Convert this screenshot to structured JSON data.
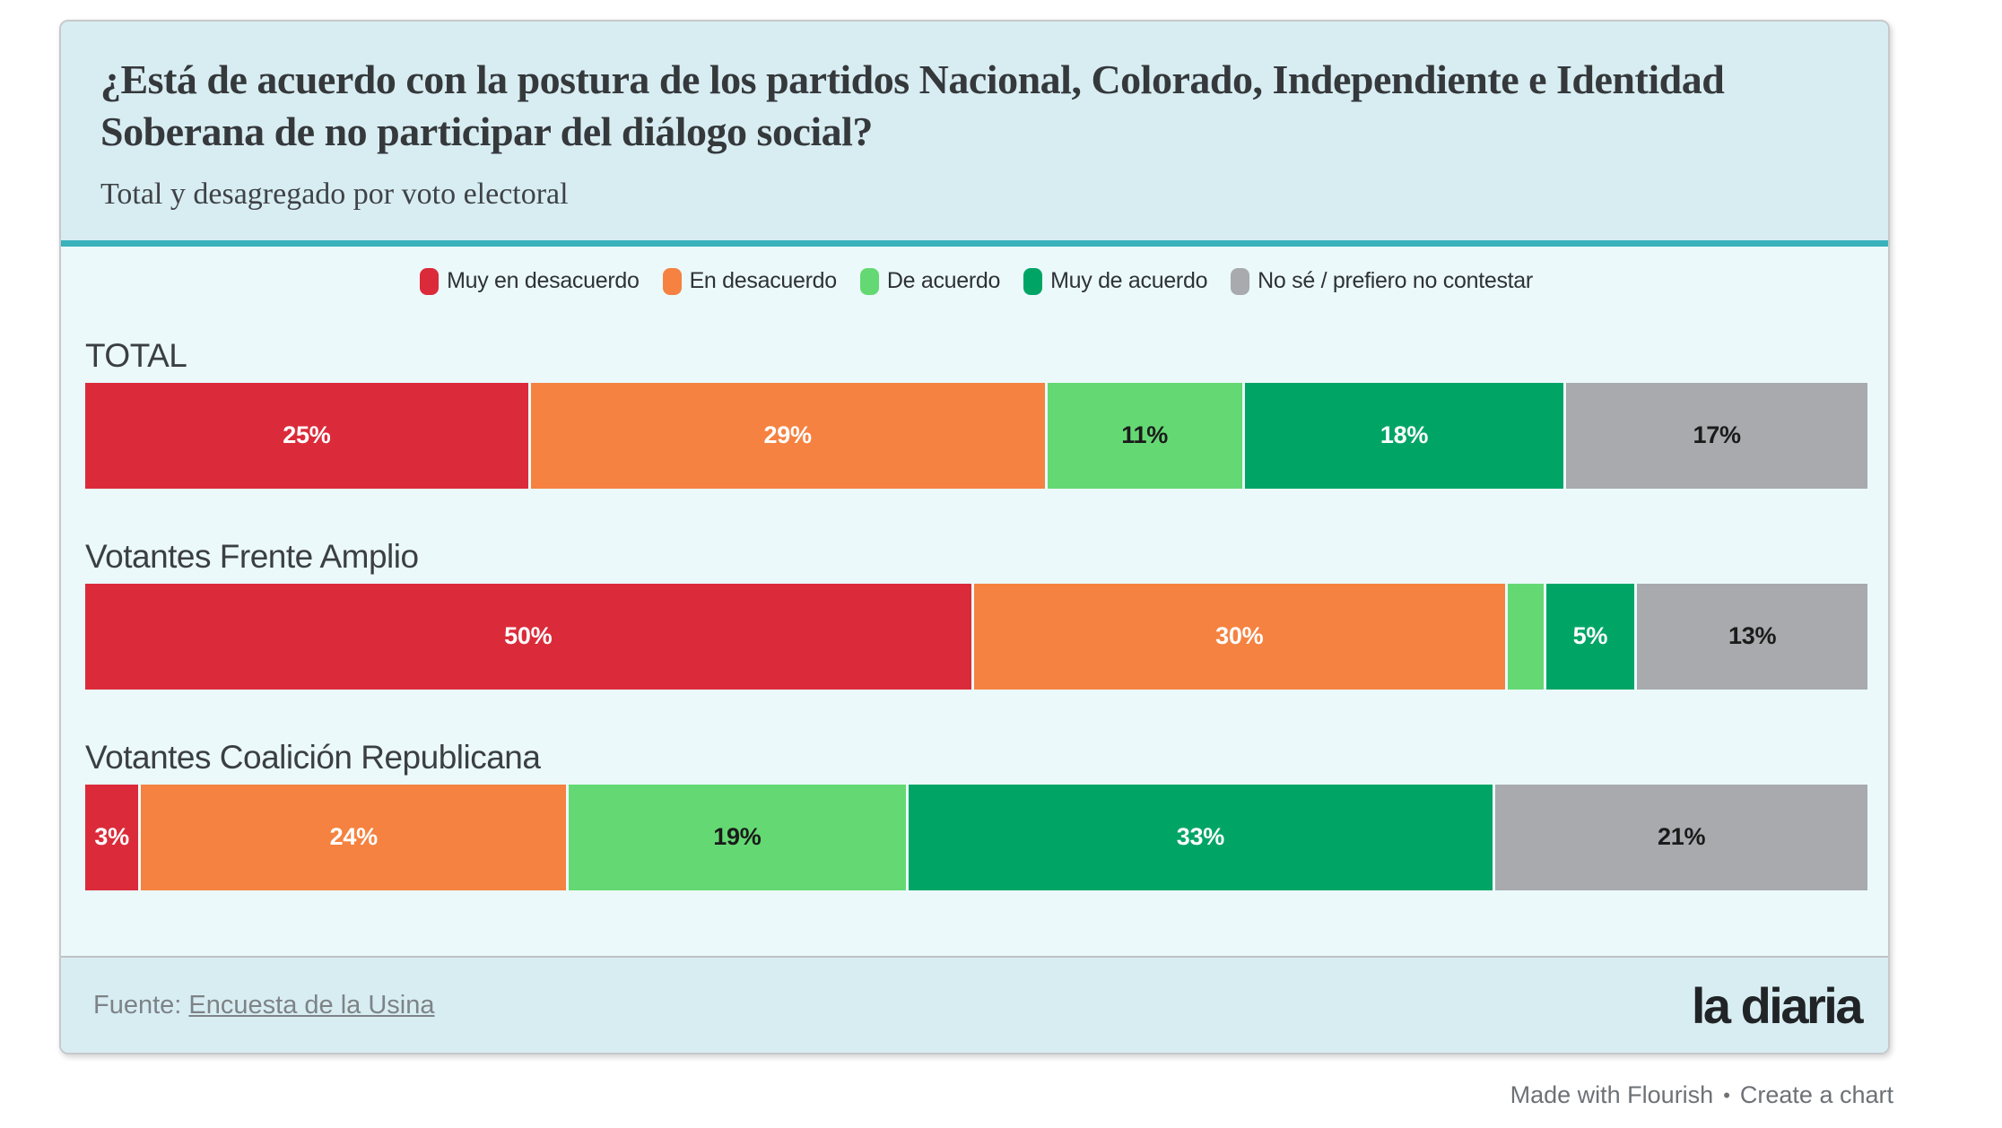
{
  "card": {
    "header": {
      "title": "¿Está de acuerdo con la postura de los partidos Nacional, Colorado, Independiente e Identidad Soberana de no participar del diálogo social?",
      "subtitle": "Total y desagregado por voto electoral"
    },
    "footer": {
      "source_prefix": "Fuente: ",
      "source_link": "Encuesta de la Usina",
      "logo": "la diaria"
    }
  },
  "attribution": {
    "made_with": "Made with Flourish",
    "separator": "•",
    "create": "Create a chart"
  },
  "colors": {
    "header_bg": "#d8edf2",
    "body_bg": "#ebf9fb",
    "footer_bg": "#d8edf2",
    "teal_rule": "#39b2bb",
    "card_border": "#c7c9cb"
  },
  "chart_data": {
    "type": "bar",
    "orientation": "horizontal-stacked",
    "legend_position": "top-center",
    "xlim": [
      0,
      100
    ],
    "units": "%",
    "categories": [
      "TOTAL",
      "Votantes Frente Amplio",
      "Votantes Coalición Republicana"
    ],
    "series": [
      {
        "name": "Muy en desacuerdo",
        "color": "#db2b3a",
        "label_color": "#ffffff",
        "values": [
          25,
          50,
          3
        ]
      },
      {
        "name": "En desacuerdo",
        "color": "#f58240",
        "label_color": "#ffffff",
        "values": [
          29,
          30,
          24
        ]
      },
      {
        "name": "De acuerdo",
        "color": "#64d973",
        "label_color": "#1b1b1b",
        "values": [
          11,
          2,
          19
        ]
      },
      {
        "name": "Muy de acuerdo",
        "color": "#00a566",
        "label_color": "#ffffff",
        "values": [
          18,
          5,
          33
        ]
      },
      {
        "name": "No sé / prefiero no contestar",
        "color": "#a8aaad",
        "label_color": "#1b1b1b",
        "values": [
          17,
          13,
          21
        ]
      }
    ],
    "rows": [
      {
        "label": "TOTAL",
        "values": [
          25,
          29,
          11,
          18,
          17
        ],
        "labels": [
          "25%",
          "29%",
          "11%",
          "18%",
          "17%"
        ]
      },
      {
        "label": "Votantes Frente Amplio",
        "values": [
          50,
          30,
          2,
          5,
          13
        ],
        "labels": [
          "50%",
          "30%",
          "",
          "5%",
          "13%"
        ]
      },
      {
        "label": "Votantes Coalición Republicana",
        "values": [
          3,
          24,
          19,
          33,
          21
        ],
        "labels": [
          "3%",
          "24%",
          "19%",
          "33%",
          "21%"
        ]
      }
    ]
  }
}
